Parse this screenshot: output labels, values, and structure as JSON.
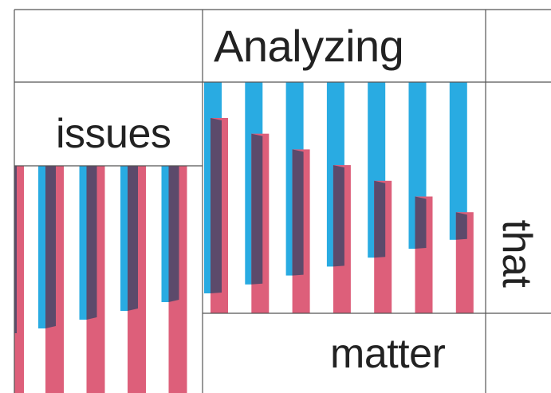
{
  "words": {
    "analyzing": "Analyzing",
    "issues": "issues",
    "that": "that",
    "matter": "matter"
  },
  "colors": {
    "background": "#ffffff",
    "grid_line": "#555555",
    "blue": "#29abe2",
    "pink": "#dd5f7a",
    "overlap": "#5c4a6b",
    "text": "#222222"
  }
}
